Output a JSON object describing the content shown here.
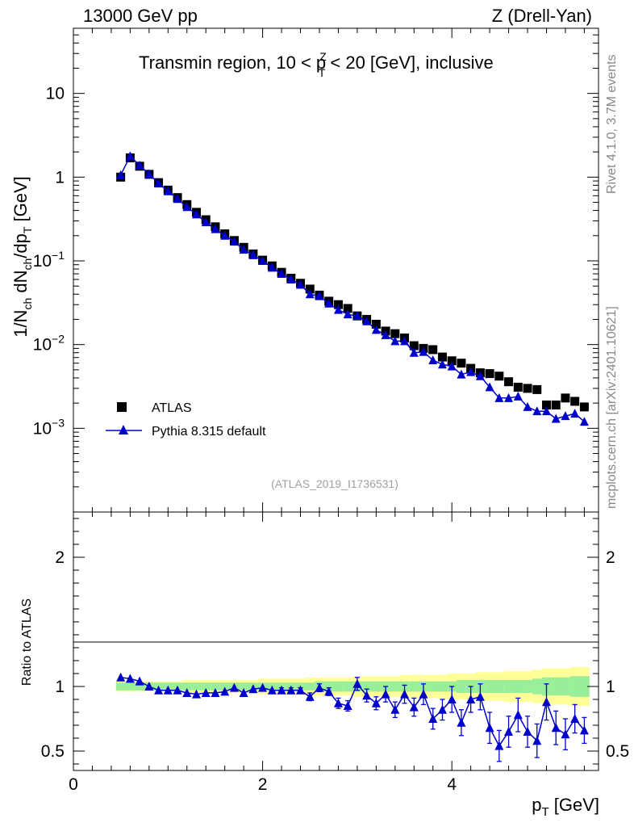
{
  "header": {
    "energy_label": "13000 GeV pp",
    "process_label": "Z (Drell-Yan)",
    "plot_title": "Transmin region, 10 < p",
    "plot_title_sup": "Z",
    "plot_title_sub": "T",
    "plot_title_tail": " < 20 [GeV], inclusive"
  },
  "side_labels": {
    "rivet": "Rivet 4.1.0,  3.7M events",
    "mcplots": "mcplots.cern.ch [arXiv:2401.10621]"
  },
  "reference_label": "(ATLAS_2019_I1736531)",
  "legend": {
    "data_label": "ATLAS",
    "mc_label": "Pythia 8.315 default"
  },
  "axes": {
    "top_ylabel": "1/N",
    "top_ylabel_parts": [
      "1/N",
      "ch",
      " dN",
      "ch",
      "/dp",
      "T",
      " [GeV]"
    ],
    "xlabel_main": "p",
    "xlabel_sub": "T",
    "xlabel_tail": " [GeV]",
    "ratio_ylabel": "Ratio to ATLAS",
    "x_ticks": [
      "0",
      "2",
      "4"
    ],
    "top_y_ticks": [
      {
        "value": 0.001,
        "base": "10",
        "exp": "−3"
      },
      {
        "value": 0.01,
        "base": "10",
        "exp": "−2"
      },
      {
        "value": 0.1,
        "base": "10",
        "exp": "−1"
      },
      {
        "value": 1,
        "base": "1",
        "exp": ""
      },
      {
        "value": 10,
        "base": "10",
        "exp": ""
      }
    ],
    "ratio_y_ticks": [
      "0.5",
      "1",
      "2"
    ]
  },
  "colors": {
    "data": "#000000",
    "mc": "#0000cc",
    "band_inner": "#99ee99",
    "band_outer": "#ffff99",
    "side_text": "#888888"
  },
  "chart_data": {
    "type": "line",
    "x_range": [
      0,
      5.55
    ],
    "top_y_range_log": [
      0.0001,
      60
    ],
    "ratio_y_range": [
      0.35,
      2.35
    ],
    "x": [
      0.5,
      0.6,
      0.7,
      0.8,
      0.9,
      1.0,
      1.1,
      1.2,
      1.3,
      1.4,
      1.5,
      1.6,
      1.7,
      1.8,
      1.9,
      2.0,
      2.1,
      2.2,
      2.3,
      2.4,
      2.5,
      2.6,
      2.7,
      2.8,
      2.9,
      3.0,
      3.1,
      3.2,
      3.3,
      3.4,
      3.5,
      3.6,
      3.7,
      3.8,
      3.9,
      4.0,
      4.1,
      4.2,
      4.3,
      4.4,
      4.5,
      4.6,
      4.7,
      4.8,
      4.9,
      5.0,
      5.1,
      5.2,
      5.3,
      5.4
    ],
    "series": [
      {
        "name": "ATLAS",
        "marker": "square",
        "values": [
          1.0,
          1.7,
          1.35,
          1.08,
          0.86,
          0.7,
          0.57,
          0.47,
          0.38,
          0.31,
          0.255,
          0.21,
          0.175,
          0.145,
          0.121,
          0.102,
          0.087,
          0.073,
          0.062,
          0.054,
          0.046,
          0.039,
          0.033,
          0.03,
          0.027,
          0.022,
          0.02,
          0.0175,
          0.0145,
          0.0135,
          0.012,
          0.0097,
          0.009,
          0.0087,
          0.0071,
          0.0064,
          0.006,
          0.0052,
          0.0046,
          0.0045,
          0.0042,
          0.0036,
          0.0031,
          0.003,
          0.0029,
          0.0019,
          0.0019,
          0.0023,
          0.0021,
          0.0018
        ]
      },
      {
        "name": "Pythia 8.315 default",
        "marker": "triangle",
        "values": [
          1.06,
          1.78,
          1.38,
          1.09,
          0.84,
          0.68,
          0.55,
          0.44,
          0.36,
          0.29,
          0.24,
          0.2,
          0.17,
          0.136,
          0.117,
          0.1,
          0.083,
          0.07,
          0.06,
          0.052,
          0.04,
          0.038,
          0.031,
          0.026,
          0.023,
          0.022,
          0.019,
          0.015,
          0.013,
          0.011,
          0.011,
          0.008,
          0.0082,
          0.0065,
          0.0058,
          0.0055,
          0.0044,
          0.0047,
          0.0042,
          0.0031,
          0.0023,
          0.0023,
          0.0024,
          0.0018,
          0.0016,
          0.0016,
          0.0013,
          0.0014,
          0.0015,
          0.0012
        ],
        "ratio": [
          1.07,
          1.06,
          1.04,
          1.0,
          0.97,
          0.97,
          0.97,
          0.95,
          0.94,
          0.95,
          0.95,
          0.96,
          0.99,
          0.95,
          0.98,
          0.99,
          0.97,
          0.97,
          0.97,
          0.97,
          0.92,
          0.99,
          0.96,
          0.87,
          0.85,
          1.02,
          0.93,
          0.87,
          0.94,
          0.82,
          0.94,
          0.84,
          0.94,
          0.75,
          0.82,
          0.9,
          0.72,
          0.9,
          0.92,
          0.68,
          0.54,
          0.65,
          0.78,
          0.65,
          0.58,
          0.88,
          0.68,
          0.63,
          0.75,
          0.66
        ],
        "ratio_err": [
          0.01,
          0.01,
          0.01,
          0.01,
          0.01,
          0.01,
          0.01,
          0.01,
          0.01,
          0.01,
          0.01,
          0.01,
          0.01,
          0.01,
          0.01,
          0.01,
          0.01,
          0.02,
          0.02,
          0.02,
          0.03,
          0.03,
          0.03,
          0.04,
          0.04,
          0.05,
          0.05,
          0.05,
          0.06,
          0.06,
          0.07,
          0.07,
          0.08,
          0.08,
          0.08,
          0.1,
          0.1,
          0.1,
          0.1,
          0.12,
          0.12,
          0.12,
          0.13,
          0.12,
          0.13,
          0.14,
          0.13,
          0.12,
          0.11,
          0.1
        ]
      }
    ],
    "ratio_band_inner": [
      0.03,
      0.03,
      0.03,
      0.03,
      0.03,
      0.03,
      0.03,
      0.03,
      0.03,
      0.03,
      0.03,
      0.03,
      0.03,
      0.03,
      0.03,
      0.03,
      0.03,
      0.03,
      0.03,
      0.03,
      0.03,
      0.04,
      0.04,
      0.04,
      0.04,
      0.04,
      0.04,
      0.04,
      0.04,
      0.04,
      0.04,
      0.04,
      0.04,
      0.04,
      0.04,
      0.04,
      0.05,
      0.05,
      0.05,
      0.05,
      0.05,
      0.05,
      0.05,
      0.05,
      0.06,
      0.07,
      0.07,
      0.07,
      0.08,
      0.08
    ],
    "ratio_band_outer": [
      0.04,
      0.04,
      0.04,
      0.04,
      0.04,
      0.04,
      0.04,
      0.05,
      0.05,
      0.05,
      0.05,
      0.05,
      0.05,
      0.05,
      0.05,
      0.06,
      0.06,
      0.06,
      0.06,
      0.06,
      0.07,
      0.07,
      0.07,
      0.07,
      0.07,
      0.08,
      0.08,
      0.08,
      0.08,
      0.08,
      0.09,
      0.09,
      0.09,
      0.09,
      0.09,
      0.1,
      0.1,
      0.1,
      0.11,
      0.11,
      0.11,
      0.12,
      0.12,
      0.12,
      0.13,
      0.14,
      0.14,
      0.14,
      0.15,
      0.15
    ]
  }
}
